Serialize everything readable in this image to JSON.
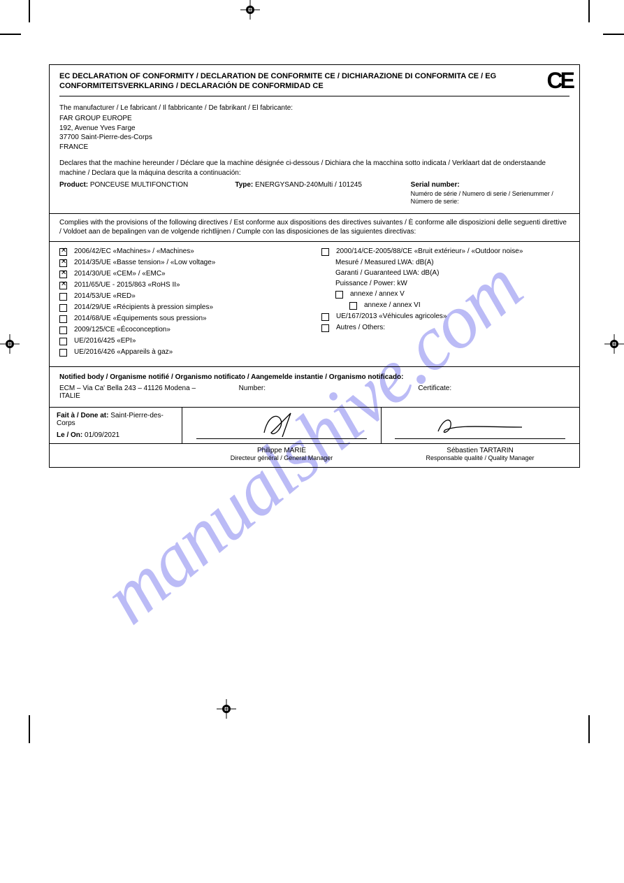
{
  "watermark": "manualshive.com",
  "ce_mark": "CE",
  "header": {
    "title_line": "EC DECLARATION OF CONFORMITY / DECLARATION DE CONFORMITE CE / DICHIARAZIONE DI CONFORMITA CE / EG CONFORMITEITSVERKLARING / DECLARACIÓN DE CONFORMIDAD CE"
  },
  "manufacturer": {
    "label": "The manufacturer / Le fabricant / Il fabbricante / De fabrikant / El fabricante:",
    "name": "FAR GROUP EUROPE",
    "addr1": "192, Avenue Yves Farge",
    "addr2": "37700 Saint-Pierre-des-Corps",
    "addr3": "FRANCE"
  },
  "declares": {
    "text": "Declares that the machine hereunder / Déclare que la machine désignée ci-dessous / Dichiara che la macchina sotto indicata / Verklaart dat de onderstaande machine / Declara que la máquina descrita a continuación:",
    "product_label": "Product:",
    "product": "PONCEUSE MULTIFONCTION",
    "type_label": "Type:",
    "type": "ENERGYSAND-240Multi / 101245",
    "serial_label_en": "Serial number:",
    "serial_label_fr": "Numéro de série / Numero di serie / Serienummer / Número de serie:"
  },
  "conforms": {
    "heading": "Complies with the provisions of the following directives / Est conforme aux dispositions des directives suivantes / È conforme alle disposizioni delle seguenti direttive / Voldoet aan de bepalingen van de volgende richtlijnen / Cumple con las disposiciones de las siguientes directivas:"
  },
  "directives": {
    "left": [
      {
        "label": "2006/42/EC «Machines» / «Machines»",
        "checked": true
      },
      {
        "label": "2014/35/UE «Basse tension» / «Low voltage»",
        "checked": true
      },
      {
        "label": "2014/30/UE «CEM» / «EMC»",
        "checked": true
      },
      {
        "label": "2011/65/UE - 2015/863 «RoHS II»",
        "checked": true
      },
      {
        "label": "2014/53/UE «RED»",
        "checked": false
      },
      {
        "label": "2014/29/UE «Récipients à pression simples»",
        "checked": false
      },
      {
        "label": "2014/68/UE «Équipements sous pression»",
        "checked": false
      },
      {
        "label": "2009/125/CE «Écoconception»",
        "checked": false
      },
      {
        "label": "UE/2016/425 «EPI»",
        "checked": false
      },
      {
        "label": "UE/2016/426 «Appareils à gaz»",
        "checked": false
      }
    ],
    "right": [
      {
        "label": "2000/14/CE-2005/88/CE «Bruit extérieur» / «Outdoor noise»",
        "checked": false,
        "sub": [
          {
            "label": "Mesuré / Measured LWA: dB(A)"
          },
          {
            "label": "Garanti / Guaranteed LWA: dB(A)"
          },
          {
            "label": "Puissance / Power: kW"
          }
        ],
        "annex": {
          "label": "annexe / annex V",
          "checked": false
        },
        "annex2": {
          "label": "annexe / annex VI",
          "checked": false
        }
      },
      {
        "label": "UE/167/2013 «Véhicules agricoles»",
        "checked": false
      },
      {
        "label": "Autres / Others:",
        "checked": false
      }
    ]
  },
  "notified": {
    "heading": "Notified body / Organisme notifié / Organismo notificato / Aangemelde instantie / Organismo notificado:",
    "col1": "ECM – Via Ca' Bella 243 – 41126 Modena – ITALIE",
    "col2": "Number:",
    "col3": "Certificate:"
  },
  "signatures": {
    "place_label": "Fait à / Done at:",
    "place": "Saint-Pierre-des-Corps",
    "date_label": "Le / On:",
    "date": "01/09/2021",
    "name1": "Philippe MARIE",
    "role1": "Directeur général / General Manager",
    "name2": "Sébastien TARTARIN",
    "role2": "Responsable qualité / Quality Manager"
  },
  "colors": {
    "text": "#000000",
    "bg": "#ffffff",
    "watermark": "#8585f0"
  }
}
